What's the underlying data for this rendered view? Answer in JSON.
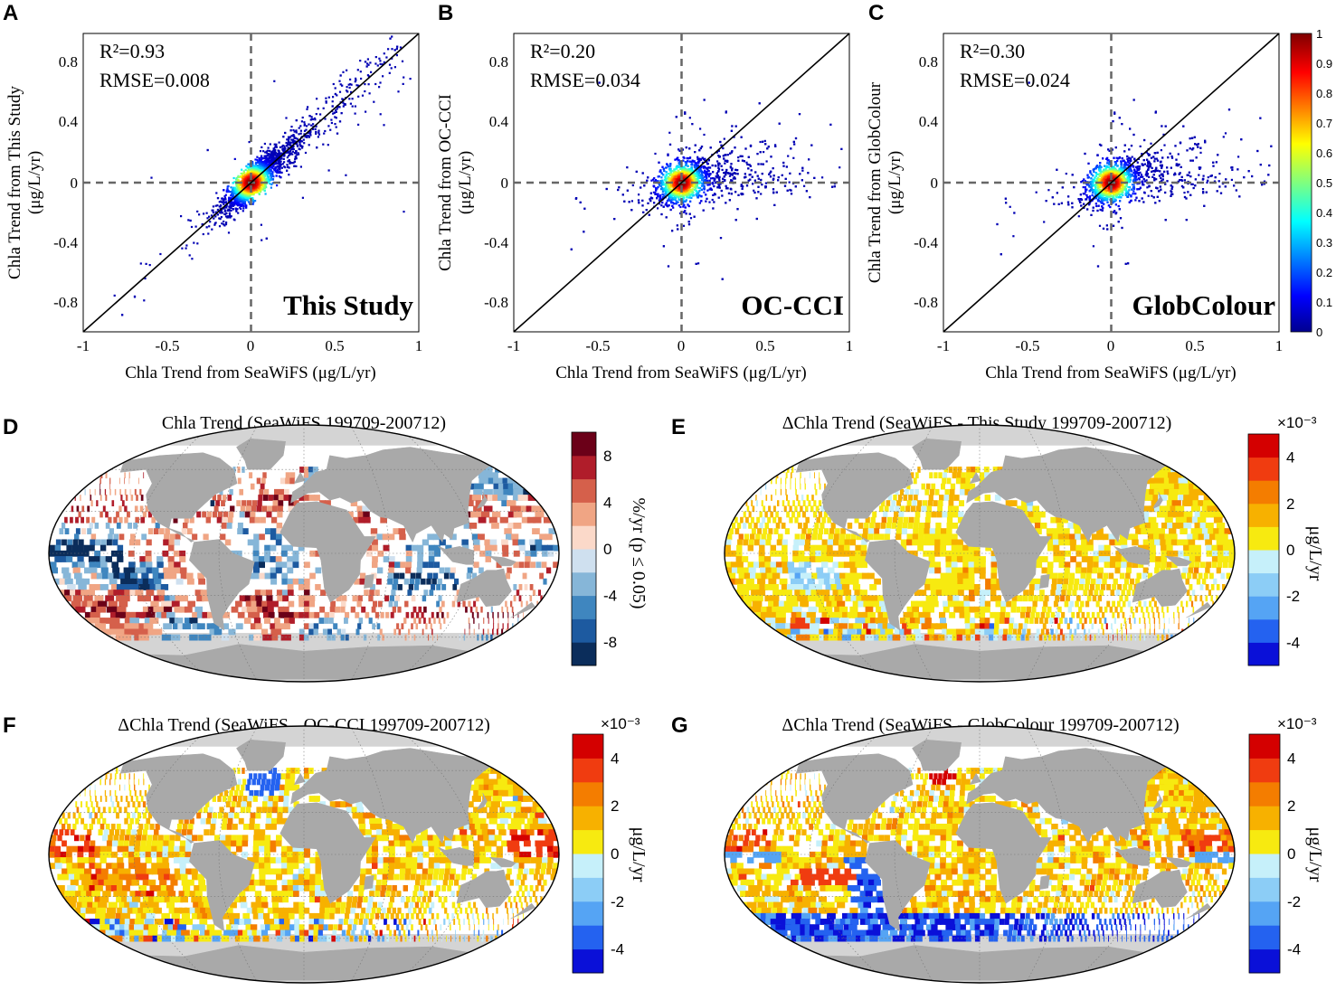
{
  "chart_data": [
    {
      "panel": "A",
      "type": "scatter",
      "annotation": "This Study",
      "stats": {
        "r2": "R²=0.93",
        "rmse": "RMSE=0.008",
        "r2_value": 0.93,
        "rmse_value": 0.008
      },
      "xlabel": "Chla Trend from SeaWiFS (μg/L/yr)",
      "ylabel": "Chla Trend from This Study",
      "ylabel_unit": "(μg/L/yr)",
      "xlim": [
        -1,
        1
      ],
      "ylim": [
        -1,
        1
      ],
      "xticks": [
        "-1",
        "-0.5",
        "0",
        "0.5",
        "1"
      ],
      "yticks": [
        "-0.8",
        "-0.4",
        "0",
        "0.4",
        "0.8"
      ],
      "spread": 0.05,
      "slope": 1.0,
      "outlier_rate": 0.01
    },
    {
      "panel": "B",
      "type": "scatter",
      "annotation": "OC-CCI",
      "stats": {
        "r2": "R²=0.20",
        "rmse": "RMSE=0.034",
        "r2_value": 0.2,
        "rmse_value": 0.034
      },
      "xlabel": "Chla Trend from SeaWiFS (μg/L/yr)",
      "ylabel": "Chla Trend from OC-CCI",
      "ylabel_unit": "(μg/L/yr)",
      "xlim": [
        -1,
        1
      ],
      "ylim": [
        -1,
        1
      ],
      "xticks": [
        "-1",
        "-0.5",
        "0",
        "0.5",
        "1"
      ],
      "yticks": [
        "-0.8",
        "-0.4",
        "0",
        "0.4",
        "0.8"
      ],
      "spread": 0.06,
      "slope": 0.3,
      "outlier_rate": 0.06
    },
    {
      "panel": "C",
      "type": "scatter",
      "annotation": "GlobColour",
      "stats": {
        "r2": "R²=0.30",
        "rmse": "RMSE=0.024",
        "r2_value": 0.3,
        "rmse_value": 0.024
      },
      "xlabel": "Chla Trend from SeaWiFS (μg/L/yr)",
      "ylabel": "Chla Trend from GlobColour",
      "ylabel_unit": "(μg/L/yr)",
      "xlim": [
        -1,
        1
      ],
      "ylim": [
        -1,
        1
      ],
      "xticks": [
        "-1",
        "-0.5",
        "0",
        "0.5",
        "1"
      ],
      "yticks": [
        "-0.8",
        "-0.4",
        "0",
        "0.4",
        "0.8"
      ],
      "spread": 0.06,
      "slope": 0.35,
      "outlier_rate": 0.05,
      "colorbar": {
        "ticks": [
          "0",
          "0.1",
          "0.2",
          "0.3",
          "0.4",
          "0.5",
          "0.6",
          "0.7",
          "0.8",
          "0.9",
          "1"
        ],
        "range": [
          0,
          1
        ]
      }
    },
    {
      "panel": "D",
      "type": "heatmap",
      "title": "Chla Trend (SeaWiFS 199709-200712)",
      "unit": "%/yr (p ≤ 0.05)",
      "colorbar_ticks": [
        "8",
        "4",
        "0",
        "-4",
        "-8"
      ],
      "colorbar_range": [
        -10,
        10
      ],
      "colors": [
        "#0b2d5b",
        "#1d5aa0",
        "#3f86bf",
        "#86b6d8",
        "#cfe0ef",
        "#fbd9c9",
        "#f0a584",
        "#d5604b",
        "#b01d2a",
        "#6b0018"
      ]
    },
    {
      "panel": "E",
      "type": "heatmap",
      "title": "ΔChla Trend (SeaWiFS - This Study 199709-200712)",
      "unit": "μg/L/yr",
      "scale": "×10⁻³",
      "colorbar_ticks": [
        "4",
        "2",
        "0",
        "-2",
        "-4"
      ],
      "colorbar_range": [
        -5,
        5
      ],
      "colors": [
        "#0a10d8",
        "#2462f0",
        "#55a4f4",
        "#8ccdf6",
        "#c6f0fa",
        "#f7ea10",
        "#f7b100",
        "#f47d00",
        "#f03c10",
        "#d40000"
      ]
    },
    {
      "panel": "F",
      "type": "heatmap",
      "title": "ΔChla Trend (SeaWiFS - OC-CCI 199709-200712)",
      "unit": "μg/L/yr",
      "scale": "×10⁻³",
      "colorbar_ticks": [
        "4",
        "2",
        "0",
        "-2",
        "-4"
      ],
      "colorbar_range": [
        -5,
        5
      ],
      "colors": [
        "#0a10d8",
        "#2462f0",
        "#55a4f4",
        "#8ccdf6",
        "#c6f0fa",
        "#f7ea10",
        "#f7b100",
        "#f47d00",
        "#f03c10",
        "#d40000"
      ]
    },
    {
      "panel": "G",
      "type": "heatmap",
      "title": "ΔChla Trend (SeaWiFS - GlobColour 199709-200712)",
      "unit": "μg/L/yr",
      "scale": "×10⁻³",
      "colorbar_ticks": [
        "4",
        "2",
        "0",
        "-2",
        "-4"
      ],
      "colorbar_range": [
        -5,
        5
      ],
      "colors": [
        "#0a10d8",
        "#2462f0",
        "#55a4f4",
        "#8ccdf6",
        "#c6f0fa",
        "#f7ea10",
        "#f7b100",
        "#f47d00",
        "#f03c10",
        "#d40000"
      ]
    }
  ]
}
